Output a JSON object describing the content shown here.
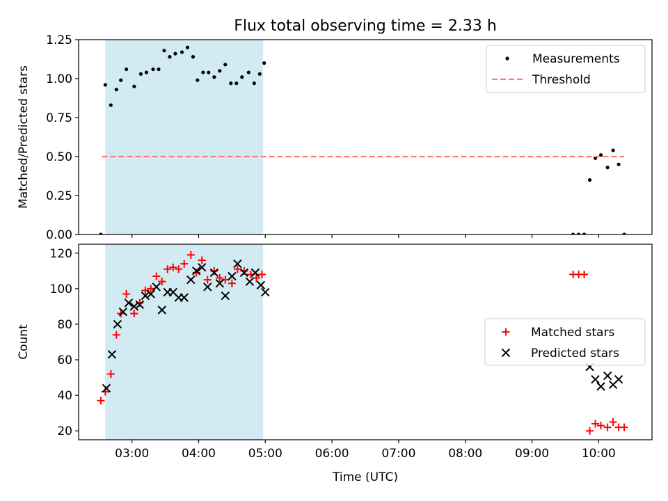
{
  "figure": {
    "title": "Flux total observing time = 2.33 h",
    "xlabel": "Time (UTC)"
  },
  "chart_data": [
    {
      "type": "scatter",
      "title": "Flux total observing time = 2.33 h",
      "ylabel": "Matched/Predicted stars",
      "xlabel": "",
      "xlim": [
        "02:12",
        "10:48"
      ],
      "ylim": [
        0,
        1.25
      ],
      "x_ticks": [
        "03:00",
        "04:00",
        "05:00",
        "06:00",
        "07:00",
        "08:00",
        "09:00",
        "10:00"
      ],
      "y_ticks": [
        "0.00",
        "0.25",
        "0.50",
        "0.75",
        "1.00",
        "1.25"
      ],
      "grid": false,
      "legend_position": "top-right",
      "shaded_span": {
        "x_start": "02:36",
        "x_end": "04:58",
        "color": "#add8e6"
      },
      "series": [
        {
          "name": "Measurements",
          "marker": "dot",
          "color": "#000000",
          "points": [
            [
              "02:32",
              0.0
            ],
            [
              "02:36",
              0.96
            ],
            [
              "02:41",
              0.83
            ],
            [
              "02:46",
              0.93
            ],
            [
              "02:50",
              0.99
            ],
            [
              "02:55",
              1.06
            ],
            [
              "03:02",
              0.95
            ],
            [
              "03:08",
              1.03
            ],
            [
              "03:13",
              1.04
            ],
            [
              "03:19",
              1.06
            ],
            [
              "03:24",
              1.06
            ],
            [
              "03:29",
              1.18
            ],
            [
              "03:34",
              1.14
            ],
            [
              "03:39",
              1.16
            ],
            [
              "03:45",
              1.17
            ],
            [
              "03:50",
              1.2
            ],
            [
              "03:55",
              1.14
            ],
            [
              "03:59",
              0.99
            ],
            [
              "04:04",
              1.04
            ],
            [
              "04:09",
              1.04
            ],
            [
              "04:14",
              1.01
            ],
            [
              "04:19",
              1.05
            ],
            [
              "04:24",
              1.09
            ],
            [
              "04:29",
              0.97
            ],
            [
              "04:34",
              0.97
            ],
            [
              "04:39",
              1.01
            ],
            [
              "04:45",
              1.04
            ],
            [
              "04:50",
              0.97
            ],
            [
              "04:55",
              1.03
            ],
            [
              "04:59",
              1.1
            ],
            [
              "09:37",
              0.0
            ],
            [
              "09:42",
              0.0
            ],
            [
              "09:47",
              0.0
            ],
            [
              "09:52",
              0.35
            ],
            [
              "09:57",
              0.49
            ],
            [
              "10:02",
              0.51
            ],
            [
              "10:08",
              0.43
            ],
            [
              "10:13",
              0.54
            ],
            [
              "10:18",
              0.45
            ],
            [
              "10:23",
              0.0
            ]
          ]
        },
        {
          "name": "Threshold",
          "kind": "hline",
          "style": "dashed",
          "color": "#ff7777",
          "y": 0.5,
          "x_start": "02:33",
          "x_end": "10:23"
        }
      ]
    },
    {
      "type": "scatter",
      "ylabel": "Count",
      "xlabel": "Time (UTC)",
      "xlim": [
        "02:12",
        "10:48"
      ],
      "ylim": [
        15,
        125
      ],
      "x_ticks": [
        "03:00",
        "04:00",
        "05:00",
        "06:00",
        "07:00",
        "08:00",
        "09:00",
        "10:00"
      ],
      "y_ticks": [
        "20",
        "40",
        "60",
        "80",
        "100",
        "120"
      ],
      "grid": false,
      "legend_position": "center-right",
      "shaded_span": {
        "x_start": "02:36",
        "x_end": "04:58",
        "color": "#add8e6"
      },
      "series": [
        {
          "name": "Matched stars",
          "marker": "plus",
          "color": "#ff0000",
          "points": [
            [
              "02:32",
              37
            ],
            [
              "02:36",
              42
            ],
            [
              "02:41",
              52
            ],
            [
              "02:46",
              74
            ],
            [
              "02:50",
              86
            ],
            [
              "02:55",
              97
            ],
            [
              "03:02",
              86
            ],
            [
              "03:07",
              92
            ],
            [
              "03:12",
              99
            ],
            [
              "03:17",
              100
            ],
            [
              "03:22",
              107
            ],
            [
              "03:27",
              104
            ],
            [
              "03:32",
              111
            ],
            [
              "03:37",
              112
            ],
            [
              "03:42",
              111
            ],
            [
              "03:47",
              114
            ],
            [
              "03:53",
              119
            ],
            [
              "03:58",
              109
            ],
            [
              "04:03",
              116
            ],
            [
              "04:08",
              105
            ],
            [
              "04:14",
              110
            ],
            [
              "04:19",
              106
            ],
            [
              "04:24",
              105
            ],
            [
              "04:30",
              103
            ],
            [
              "04:35",
              111
            ],
            [
              "04:41",
              110
            ],
            [
              "04:47",
              108
            ],
            [
              "04:52",
              106
            ],
            [
              "04:57",
              108
            ],
            [
              "09:37",
              108
            ],
            [
              "09:42",
              108
            ],
            [
              "09:47",
              108
            ],
            [
              "09:52",
              20
            ],
            [
              "09:57",
              24
            ],
            [
              "10:02",
              23
            ],
            [
              "10:08",
              22
            ],
            [
              "10:13",
              25
            ],
            [
              "10:18",
              22
            ],
            [
              "10:23",
              22
            ]
          ]
        },
        {
          "name": "Predicted stars",
          "marker": "x",
          "color": "#000000",
          "points": [
            [
              "02:37",
              44
            ],
            [
              "02:42",
              63
            ],
            [
              "02:47",
              80
            ],
            [
              "02:52",
              87
            ],
            [
              "02:57",
              92
            ],
            [
              "03:02",
              90
            ],
            [
              "03:07",
              91
            ],
            [
              "03:12",
              96
            ],
            [
              "03:17",
              97
            ],
            [
              "03:22",
              101
            ],
            [
              "03:27",
              88
            ],
            [
              "03:32",
              98
            ],
            [
              "03:37",
              98
            ],
            [
              "03:42",
              95
            ],
            [
              "03:47",
              95
            ],
            [
              "03:53",
              105
            ],
            [
              "03:58",
              110
            ],
            [
              "04:03",
              112
            ],
            [
              "04:08",
              101
            ],
            [
              "04:14",
              109
            ],
            [
              "04:19",
              103
            ],
            [
              "04:24",
              96
            ],
            [
              "04:30",
              107
            ],
            [
              "04:35",
              114
            ],
            [
              "04:41",
              109
            ],
            [
              "04:46",
              104
            ],
            [
              "04:51",
              109
            ],
            [
              "04:56",
              102
            ],
            [
              "05:00",
              98
            ],
            [
              "09:52",
              56
            ],
            [
              "09:57",
              49
            ],
            [
              "10:02",
              45
            ],
            [
              "10:08",
              51
            ],
            [
              "10:13",
              46
            ],
            [
              "10:18",
              49
            ]
          ]
        }
      ]
    }
  ]
}
